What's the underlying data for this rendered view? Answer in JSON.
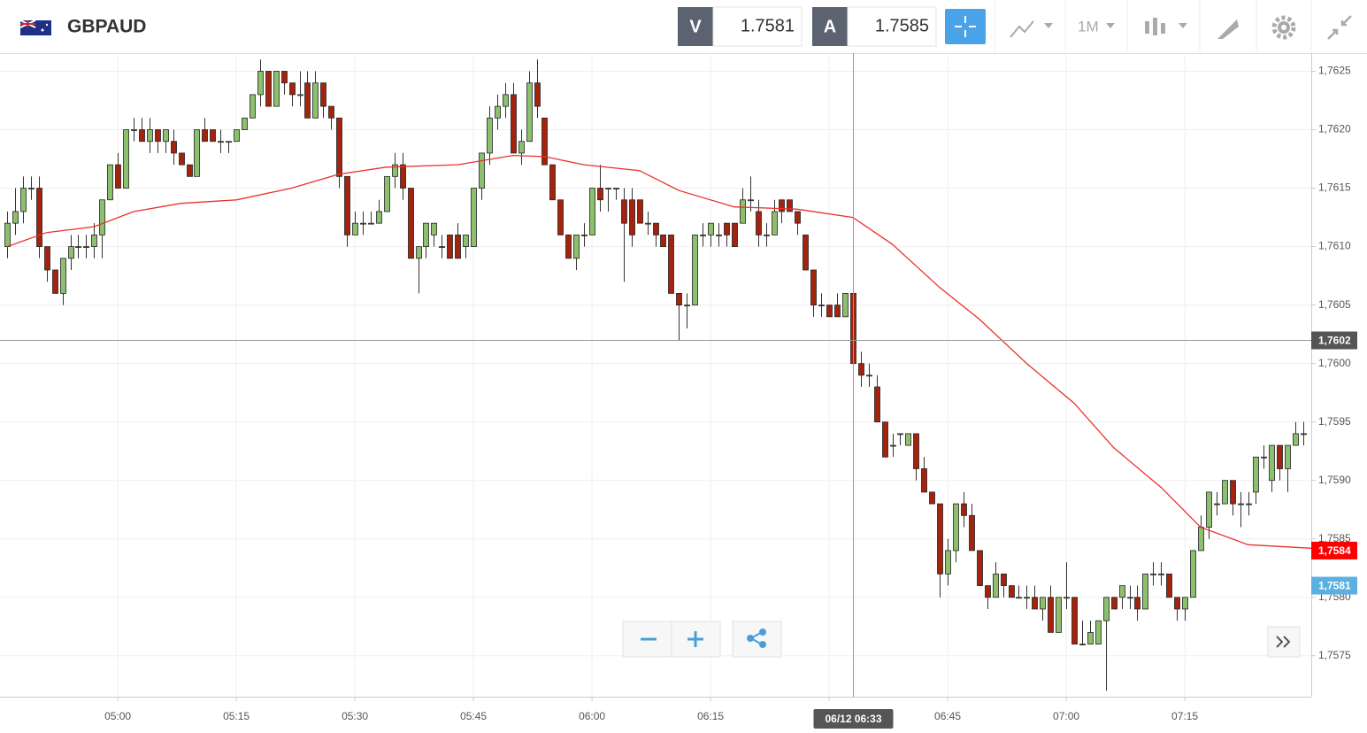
{
  "chart_data": {
    "type": "candlestick",
    "symbol": "GBPAUD",
    "bid_label": "V",
    "bid": "1.7581",
    "ask_label": "A",
    "ask": "1.7585",
    "timeframe": "1M",
    "up_color": "#8cbf6e",
    "down_color": "#a3230f",
    "xlim": [
      285.1,
      451
    ],
    "ylim": [
      1.75715,
      1.76264
    ],
    "grid": true,
    "yticks": [
      {
        "value": 1.7575,
        "label": "1,7575"
      },
      {
        "value": 1.758,
        "label": "1,7580"
      },
      {
        "value": 1.7585,
        "label": "1,7585"
      },
      {
        "value": 1.759,
        "label": "1,7590"
      },
      {
        "value": 1.7595,
        "label": "1,7595"
      },
      {
        "value": 1.76,
        "label": "1,7600"
      },
      {
        "value": 1.7605,
        "label": "1,7605"
      },
      {
        "value": 1.761,
        "label": "1,7610"
      },
      {
        "value": 1.7615,
        "label": "1,7615"
      },
      {
        "value": 1.762,
        "label": "1,7620"
      },
      {
        "value": 1.7625,
        "label": "1,7625"
      }
    ],
    "xticks": [
      {
        "value": 300,
        "label": "05:00"
      },
      {
        "value": 315,
        "label": "05:15"
      },
      {
        "value": 330,
        "label": "05:30"
      },
      {
        "value": 345,
        "label": "05:45"
      },
      {
        "value": 360,
        "label": "06:00"
      },
      {
        "value": 375,
        "label": "06:15"
      },
      {
        "value": 390,
        "label": null
      },
      {
        "value": 405,
        "label": "06:45"
      },
      {
        "value": 420,
        "label": "07:00"
      },
      {
        "value": 435,
        "label": "07:15"
      }
    ],
    "x": [
      286,
      287,
      288,
      289,
      290,
      291,
      292,
      293,
      294,
      295,
      296,
      297,
      298,
      299,
      300,
      301,
      302,
      303,
      304,
      305,
      306,
      307,
      308,
      309,
      310,
      311,
      312,
      313,
      314,
      315,
      316,
      317,
      318,
      319,
      320,
      321,
      322,
      323,
      324,
      325,
      326,
      327,
      328,
      329,
      330,
      331,
      332,
      333,
      334,
      335,
      336,
      337,
      338,
      339,
      340,
      341,
      342,
      343,
      344,
      345,
      346,
      347,
      348,
      349,
      350,
      351,
      352,
      353,
      354,
      355,
      356,
      357,
      358,
      359,
      360,
      361,
      362,
      363,
      364,
      365,
      366,
      367,
      368,
      369,
      370,
      371,
      372,
      373,
      374,
      375,
      376,
      377,
      378,
      379,
      380,
      381,
      382,
      383,
      384,
      385,
      386,
      387,
      388,
      389,
      390,
      391,
      392,
      393,
      394,
      395,
      396,
      397,
      398,
      399,
      400,
      401,
      402,
      403,
      404,
      405,
      406,
      407,
      408,
      409,
      410,
      411,
      412,
      413,
      414,
      415,
      416,
      417,
      418,
      419,
      420,
      421,
      422,
      423,
      424,
      425,
      426,
      427,
      428,
      429,
      430,
      431,
      432,
      433,
      434,
      435,
      436,
      437,
      438,
      439,
      440,
      441,
      442,
      443,
      444,
      445,
      446,
      447,
      448,
      449,
      450
    ],
    "ohlc": [
      [
        1.761,
        1.7613,
        1.7609,
        1.7612
      ],
      [
        1.7612,
        1.7615,
        1.7611,
        1.7613
      ],
      [
        1.7613,
        1.7616,
        1.7612,
        1.7615
      ],
      [
        1.7615,
        1.7616,
        1.7614,
        1.7615
      ],
      [
        1.7615,
        1.7616,
        1.7609,
        1.761
      ],
      [
        1.761,
        1.761,
        1.7607,
        1.7608
      ],
      [
        1.7608,
        1.7608,
        1.7606,
        1.7606
      ],
      [
        1.7606,
        1.7609,
        1.7605,
        1.7609
      ],
      [
        1.7609,
        1.7611,
        1.7608,
        1.761
      ],
      [
        1.761,
        1.7611,
        1.7609,
        1.761
      ],
      [
        1.761,
        1.7611,
        1.7609,
        1.761
      ],
      [
        1.761,
        1.7612,
        1.7609,
        1.7611
      ],
      [
        1.7611,
        1.7614,
        1.7609,
        1.7614
      ],
      [
        1.7614,
        1.7617,
        1.7614,
        1.7617
      ],
      [
        1.7617,
        1.7618,
        1.7615,
        1.7615
      ],
      [
        1.7615,
        1.762,
        1.7615,
        1.762
      ],
      [
        1.762,
        1.7621,
        1.7619,
        1.762
      ],
      [
        1.762,
        1.7621,
        1.7619,
        1.7619
      ],
      [
        1.7619,
        1.7621,
        1.7618,
        1.762
      ],
      [
        1.762,
        1.762,
        1.7618,
        1.7619
      ],
      [
        1.7619,
        1.762,
        1.7618,
        1.762
      ],
      [
        1.7619,
        1.762,
        1.7617,
        1.7618
      ],
      [
        1.7618,
        1.7618,
        1.7617,
        1.7617
      ],
      [
        1.7617,
        1.7617,
        1.7616,
        1.7616
      ],
      [
        1.7616,
        1.762,
        1.7616,
        1.762
      ],
      [
        1.762,
        1.7621,
        1.7619,
        1.7619
      ],
      [
        1.762,
        1.762,
        1.7619,
        1.7619
      ],
      [
        1.7619,
        1.762,
        1.7618,
        1.7619
      ],
      [
        1.7619,
        1.7619,
        1.7618,
        1.7619
      ],
      [
        1.7619,
        1.762,
        1.7619,
        1.762
      ],
      [
        1.762,
        1.7621,
        1.762,
        1.7621
      ],
      [
        1.7621,
        1.7623,
        1.7621,
        1.7623
      ],
      [
        1.7623,
        1.7626,
        1.7622,
        1.7625
      ],
      [
        1.7625,
        1.7625,
        1.7622,
        1.7622
      ],
      [
        1.7622,
        1.7625,
        1.7622,
        1.7625
      ],
      [
        1.7625,
        1.7625,
        1.7623,
        1.7624
      ],
      [
        1.7624,
        1.7624,
        1.7622,
        1.7623
      ],
      [
        1.7623,
        1.7625,
        1.7622,
        1.7623
      ],
      [
        1.7624,
        1.7625,
        1.7621,
        1.7621
      ],
      [
        1.7621,
        1.7625,
        1.7621,
        1.7624
      ],
      [
        1.7624,
        1.7624,
        1.7621,
        1.7622
      ],
      [
        1.7622,
        1.7622,
        1.762,
        1.7621
      ],
      [
        1.7621,
        1.7621,
        1.7615,
        1.7616
      ],
      [
        1.7616,
        1.7616,
        1.761,
        1.7611
      ],
      [
        1.7611,
        1.7613,
        1.7611,
        1.7612
      ],
      [
        1.7612,
        1.7613,
        1.7611,
        1.7612
      ],
      [
        1.7612,
        1.7613,
        1.7612,
        1.7612
      ],
      [
        1.7612,
        1.7614,
        1.7612,
        1.7613
      ],
      [
        1.7613,
        1.7616,
        1.7613,
        1.7616
      ],
      [
        1.7616,
        1.7618,
        1.7615,
        1.7617
      ],
      [
        1.7617,
        1.7618,
        1.7614,
        1.7615
      ],
      [
        1.7615,
        1.7615,
        1.7609,
        1.7609
      ],
      [
        1.7609,
        1.761,
        1.7606,
        1.761
      ],
      [
        1.761,
        1.7612,
        1.7609,
        1.7612
      ],
      [
        1.7611,
        1.7612,
        1.761,
        1.7612
      ],
      [
        1.761,
        1.7611,
        1.7609,
        1.761
      ],
      [
        1.7611,
        1.7611,
        1.7609,
        1.7609
      ],
      [
        1.7611,
        1.7612,
        1.7609,
        1.7609
      ],
      [
        1.761,
        1.7611,
        1.7609,
        1.7611
      ],
      [
        1.761,
        1.7615,
        1.761,
        1.7615
      ],
      [
        1.7615,
        1.7618,
        1.7614,
        1.7618
      ],
      [
        1.7618,
        1.7622,
        1.7617,
        1.7621
      ],
      [
        1.7621,
        1.7623,
        1.762,
        1.7622
      ],
      [
        1.7622,
        1.7624,
        1.7621,
        1.7623
      ],
      [
        1.7623,
        1.7624,
        1.7618,
        1.7618
      ],
      [
        1.7618,
        1.762,
        1.7617,
        1.7619
      ],
      [
        1.7619,
        1.7625,
        1.7619,
        1.7624
      ],
      [
        1.7624,
        1.7626,
        1.7621,
        1.7622
      ],
      [
        1.7621,
        1.7621,
        1.7617,
        1.7617
      ],
      [
        1.7617,
        1.7617,
        1.7614,
        1.7614
      ],
      [
        1.7614,
        1.7614,
        1.7611,
        1.7611
      ],
      [
        1.7611,
        1.7611,
        1.7609,
        1.7609
      ],
      [
        1.7609,
        1.7611,
        1.7608,
        1.7611
      ],
      [
        1.7611,
        1.7612,
        1.761,
        1.7611
      ],
      [
        1.7611,
        1.7615,
        1.7611,
        1.7615
      ],
      [
        1.7615,
        1.7617,
        1.7613,
        1.7614
      ],
      [
        1.7615,
        1.7615,
        1.7613,
        1.7615
      ],
      [
        1.7615,
        1.7615,
        1.7614,
        1.7615
      ],
      [
        1.7614,
        1.7615,
        1.7607,
        1.7612
      ],
      [
        1.7614,
        1.7615,
        1.761,
        1.7611
      ],
      [
        1.7614,
        1.7614,
        1.7612,
        1.7612
      ],
      [
        1.7612,
        1.7613,
        1.7611,
        1.7612
      ],
      [
        1.7612,
        1.7612,
        1.761,
        1.7611
      ],
      [
        1.7611,
        1.7611,
        1.761,
        1.761
      ],
      [
        1.7611,
        1.7611,
        1.7606,
        1.7606
      ],
      [
        1.7606,
        1.7606,
        1.7602,
        1.7605
      ],
      [
        1.7605,
        1.7606,
        1.7603,
        1.7605
      ],
      [
        1.7605,
        1.7611,
        1.7605,
        1.7611
      ],
      [
        1.7611,
        1.7612,
        1.761,
        1.7611
      ],
      [
        1.7611,
        1.7612,
        1.761,
        1.7612
      ],
      [
        1.7611,
        1.7612,
        1.761,
        1.7611
      ],
      [
        1.7612,
        1.7612,
        1.761,
        1.7611
      ],
      [
        1.7612,
        1.7612,
        1.761,
        1.761
      ],
      [
        1.7612,
        1.7615,
        1.7612,
        1.7614
      ],
      [
        1.7614,
        1.7616,
        1.7613,
        1.7614
      ],
      [
        1.7613,
        1.7614,
        1.761,
        1.7611
      ],
      [
        1.7611,
        1.7612,
        1.761,
        1.7611
      ],
      [
        1.7611,
        1.7614,
        1.7611,
        1.7613
      ],
      [
        1.7614,
        1.7614,
        1.7612,
        1.7613
      ],
      [
        1.7614,
        1.7614,
        1.7613,
        1.7613
      ],
      [
        1.7613,
        1.7613,
        1.7611,
        1.7612
      ],
      [
        1.7611,
        1.7611,
        1.7608,
        1.7608
      ],
      [
        1.7608,
        1.7608,
        1.7604,
        1.7605
      ],
      [
        1.7605,
        1.7606,
        1.7604,
        1.7605
      ],
      [
        1.7605,
        1.7605,
        1.7604,
        1.7604
      ],
      [
        1.7605,
        1.7606,
        1.7604,
        1.7604
      ],
      [
        1.7604,
        1.7606,
        1.7604,
        1.7606
      ],
      [
        1.7606,
        1.7606,
        1.76,
        1.76
      ],
      [
        1.76,
        1.7601,
        1.7598,
        1.7599
      ],
      [
        1.7599,
        1.76,
        1.7598,
        1.7599
      ],
      [
        1.7598,
        1.7599,
        1.7595,
        1.7595
      ],
      [
        1.7595,
        1.7595,
        1.7592,
        1.7592
      ],
      [
        1.7593,
        1.7594,
        1.7592,
        1.7593
      ],
      [
        1.7594,
        1.7594,
        1.7593,
        1.7594
      ],
      [
        1.7593,
        1.7594,
        1.7593,
        1.7594
      ],
      [
        1.7594,
        1.7594,
        1.759,
        1.7591
      ],
      [
        1.7591,
        1.7592,
        1.7589,
        1.7589
      ],
      [
        1.7589,
        1.7589,
        1.7588,
        1.7588
      ],
      [
        1.7588,
        1.7588,
        1.758,
        1.7582
      ],
      [
        1.7582,
        1.7585,
        1.7581,
        1.7584
      ],
      [
        1.7584,
        1.7588,
        1.7583,
        1.7588
      ],
      [
        1.7588,
        1.7589,
        1.7586,
        1.7587
      ],
      [
        1.7587,
        1.7588,
        1.7584,
        1.7584
      ],
      [
        1.7584,
        1.7584,
        1.7581,
        1.7581
      ],
      [
        1.7581,
        1.7581,
        1.7579,
        1.758
      ],
      [
        1.758,
        1.7583,
        1.758,
        1.7582
      ],
      [
        1.7582,
        1.7582,
        1.758,
        1.7581
      ],
      [
        1.7581,
        1.7581,
        1.758,
        1.758
      ],
      [
        1.758,
        1.7581,
        1.758,
        1.758
      ],
      [
        1.758,
        1.7581,
        1.7579,
        1.758
      ],
      [
        1.758,
        1.7581,
        1.7579,
        1.7579
      ],
      [
        1.7579,
        1.758,
        1.7578,
        1.758
      ],
      [
        1.758,
        1.7581,
        1.7577,
        1.7577
      ],
      [
        1.7577,
        1.758,
        1.7577,
        1.758
      ],
      [
        1.758,
        1.7583,
        1.7579,
        1.758
      ],
      [
        1.758,
        1.758,
        1.7576,
        1.7576
      ],
      [
        1.7576,
        1.7578,
        1.7576,
        1.7576
      ],
      [
        1.7576,
        1.7578,
        1.7576,
        1.7577
      ],
      [
        1.7576,
        1.7578,
        1.7576,
        1.7578
      ],
      [
        1.7578,
        1.758,
        1.7572,
        1.758
      ],
      [
        1.758,
        1.758,
        1.7579,
        1.7579
      ],
      [
        1.758,
        1.7581,
        1.7579,
        1.7581
      ],
      [
        1.758,
        1.7581,
        1.7579,
        1.758
      ],
      [
        1.758,
        1.7581,
        1.7578,
        1.7579
      ],
      [
        1.7579,
        1.7582,
        1.7579,
        1.7582
      ],
      [
        1.7582,
        1.7583,
        1.7581,
        1.7582
      ],
      [
        1.7582,
        1.7583,
        1.7581,
        1.7582
      ],
      [
        1.7582,
        1.7582,
        1.758,
        1.758
      ],
      [
        1.758,
        1.758,
        1.7578,
        1.7579
      ],
      [
        1.7579,
        1.758,
        1.7578,
        1.758
      ],
      [
        1.758,
        1.7584,
        1.758,
        1.7584
      ],
      [
        1.7584,
        1.7587,
        1.7584,
        1.7586
      ],
      [
        1.7586,
        1.7589,
        1.7585,
        1.7589
      ],
      [
        1.7588,
        1.7589,
        1.7587,
        1.7588
      ],
      [
        1.7588,
        1.759,
        1.7588,
        1.759
      ],
      [
        1.759,
        1.759,
        1.7587,
        1.7588
      ],
      [
        1.7588,
        1.7589,
        1.7586,
        1.7588
      ],
      [
        1.7588,
        1.7589,
        1.7587,
        1.7588
      ],
      [
        1.7589,
        1.7592,
        1.7588,
        1.7592
      ],
      [
        1.7592,
        1.7593,
        1.7591,
        1.7592
      ],
      [
        1.759,
        1.7593,
        1.7589,
        1.7593
      ],
      [
        1.7593,
        1.7593,
        1.759,
        1.7591
      ],
      [
        1.7591,
        1.7593,
        1.7589,
        1.7593
      ],
      [
        1.7593,
        1.7595,
        1.7593,
        1.7594
      ],
      [
        1.7594,
        1.7595,
        1.7593,
        1.7594
      ]
    ],
    "moving_average": {
      "color": "#e8322a",
      "x": [
        286,
        291,
        297,
        302,
        308,
        315,
        322,
        328,
        334,
        343,
        350,
        354,
        359,
        366,
        371,
        378,
        386,
        393,
        398,
        404,
        409,
        415,
        421,
        426,
        432,
        437,
        443,
        451
      ],
      "values": [
        1.761,
        1.76112,
        1.76117,
        1.7613,
        1.76137,
        1.7614,
        1.7615,
        1.76162,
        1.76168,
        1.7617,
        1.76178,
        1.76177,
        1.7617,
        1.76165,
        1.76148,
        1.76134,
        1.76132,
        1.76125,
        1.76102,
        1.76065,
        1.76038,
        1.76,
        1.75966,
        1.75928,
        1.75894,
        1.7586,
        1.75845,
        1.75842
      ]
    },
    "crosshair": {
      "x": 393,
      "y": 1.7602,
      "x_label": "06/12 06:33",
      "y_label": "1,7602"
    },
    "price_tags": [
      {
        "value": 1.7584,
        "label": "1,7584",
        "color": "#ff0000"
      },
      {
        "value": 1.7581,
        "label": "1,7581",
        "color": "#5ab0e0"
      }
    ]
  }
}
